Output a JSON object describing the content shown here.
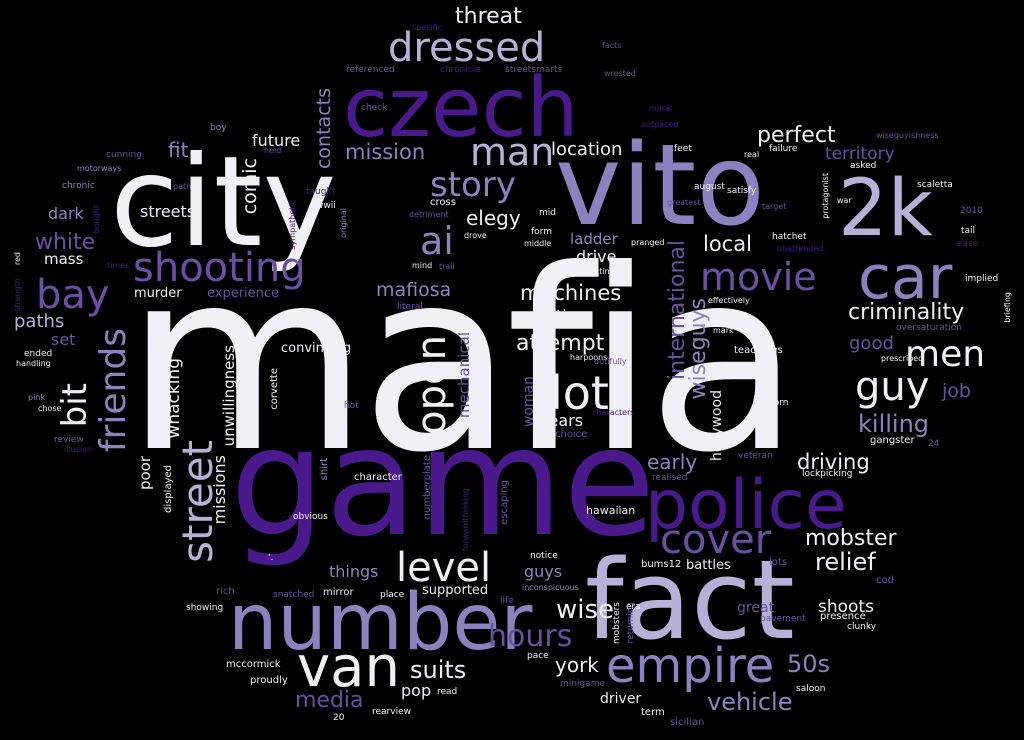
{
  "palette": {
    "white": "#f2f0f7",
    "lavender": "#b6b1d6",
    "periwinkle": "#8a83c0",
    "purple": "#6a4fa3",
    "deep_purple": "#4a1a8c",
    "background": "#000000"
  },
  "words": [
    "mafia",
    "game",
    "city",
    "vito",
    "fact",
    "czech",
    "number",
    "police",
    "2k",
    "car",
    "van",
    "empire",
    "shooting",
    "bay",
    "street",
    "friends",
    "cover",
    "movie",
    "guy",
    "men",
    "dressed",
    "man",
    "lot",
    "open",
    "level",
    "story",
    "ai",
    "bit",
    "criminality",
    "perfect",
    "killing",
    "hours",
    "driving",
    "mobster",
    "relief",
    "international",
    "wiseguys",
    "wise",
    "suits",
    "50s",
    "vehicle",
    "media",
    "york",
    "early",
    "location",
    "threat",
    "mission",
    "contacts",
    "comic",
    "fit",
    "future",
    "territory",
    "white",
    "dark",
    "streets",
    "elegy",
    "local",
    "mafiosa",
    "machines",
    "drive",
    "ladder",
    "attempt",
    "time",
    "whacking",
    "missions",
    "unwillingness",
    "convincing",
    "paths",
    "mass",
    "murder",
    "experience",
    "set",
    "poor",
    "years",
    "woman",
    "mechanical",
    "hollywood",
    "good",
    "job",
    "guys",
    "things",
    "shoots",
    "great",
    "pop",
    "driver",
    "supported",
    "battles",
    "hawaiian",
    "escaping",
    "numberplate",
    "teachings",
    "lockpicking",
    "gangster",
    "character",
    "corvette",
    "shirt",
    "displayed",
    "obvious",
    "mccormick",
    "proudly",
    "rearview",
    "read",
    "pace",
    "term",
    "sicilian",
    "minigame",
    "presence",
    "clunky",
    "saloon",
    "showing",
    "rich",
    "snatched",
    "mirror",
    "place",
    "life",
    "bums12",
    "lots",
    "cod",
    "notice",
    "inconspicuous",
    "returning",
    "mobsters",
    "era",
    "pavement",
    "realised",
    "veteran",
    "24",
    "20",
    "hot",
    "chose",
    "review",
    "illusion",
    "pink",
    "handling",
    "ended",
    "red",
    "streetsmarts",
    "chronicle",
    "referenced",
    "facts",
    "wrested",
    "specific",
    "moral",
    "outpaced",
    "check",
    "boy",
    "cunning",
    "motorways",
    "chronic",
    "path",
    "held",
    "taught",
    "wwii",
    "bought",
    "original",
    "sympathetic",
    "cross",
    "detriment",
    "drove",
    "form",
    "middle",
    "mid",
    "mind",
    "trail",
    "literal",
    "acting",
    "pranged",
    "effectively",
    "mark",
    "harpoons",
    "dutifully",
    "characters",
    "choice",
    "born",
    "hatchet",
    "unattended",
    "protagonist",
    "war",
    "target",
    "satisfy",
    "august",
    "greatest",
    "real",
    "failure",
    "feet",
    "asked",
    "scaletta",
    "2010",
    "tail",
    "ease",
    "implied",
    "oversaturation",
    "prescribed",
    "briefing",
    "strength",
    "times",
    "forwardthinking",
    "'.",
    "wiseguyishness"
  ]
}
